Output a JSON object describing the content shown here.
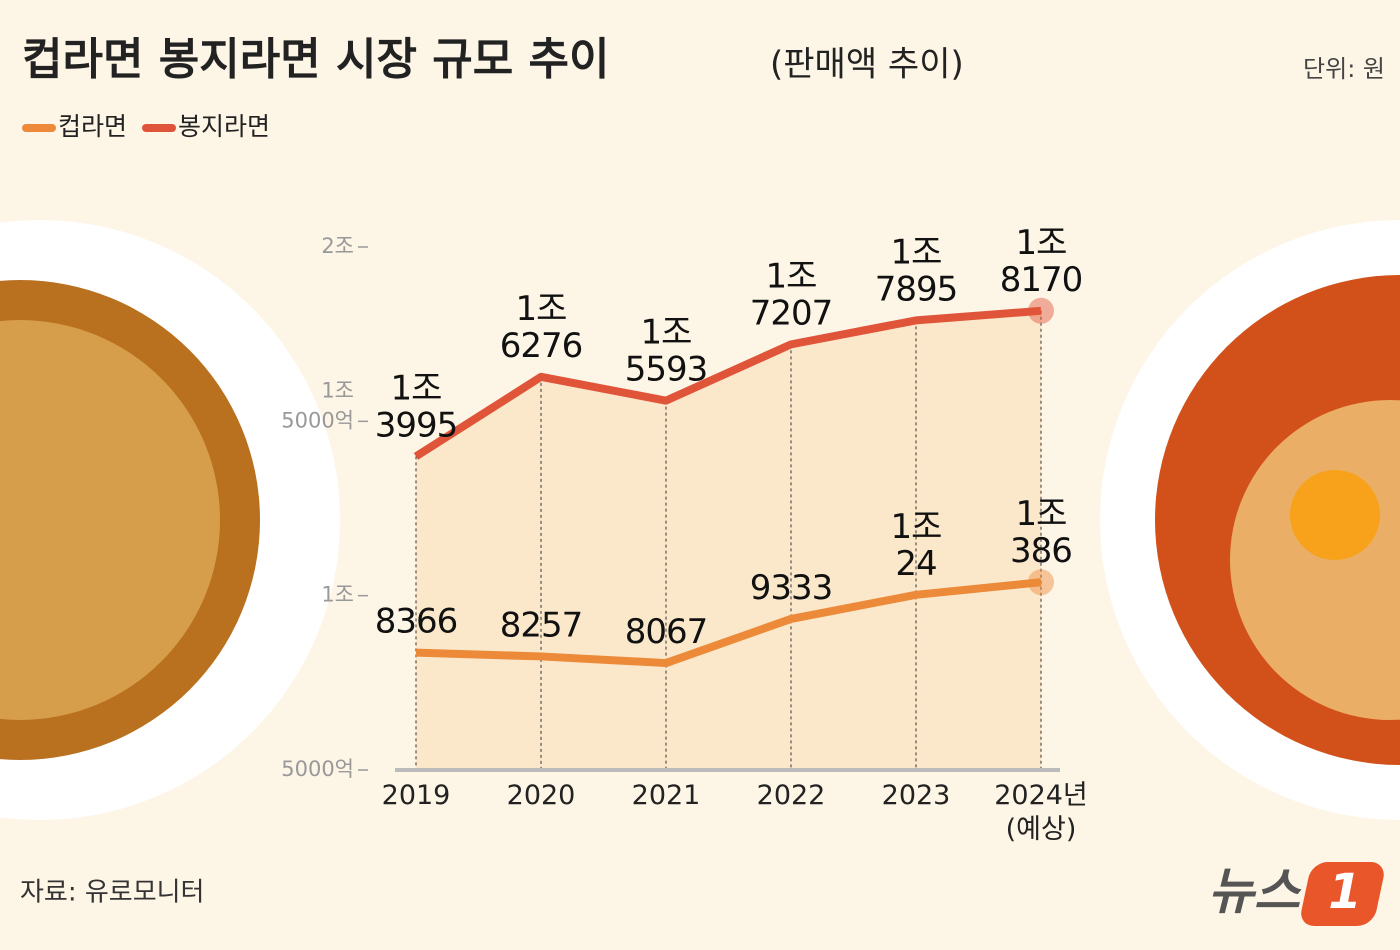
{
  "chart_data": {
    "type": "line",
    "title": "컵라면 봉지라면 시장 규모 추이",
    "subtitle": "(판매액 추이)",
    "unit_note": "단위: 원",
    "source": "자료: 유로모니터",
    "logo": "뉴스",
    "logo_mark": "1",
    "categories": [
      "2019",
      "2020",
      "2021",
      "2022",
      "2023",
      "2024년 (예상)"
    ],
    "series": [
      {
        "name": "컵라면",
        "color": "#ec8a3a",
        "values": [
          8366,
          8257,
          8067,
          9333,
          10024,
          10386
        ],
        "value_labels": [
          "8366",
          "8257",
          "8067",
          "9333",
          "1조 24",
          "1조 386"
        ]
      },
      {
        "name": "봉지라면",
        "color": "#e0553a",
        "values": [
          13995,
          16276,
          15593,
          17207,
          17895,
          18170
        ],
        "value_labels": [
          "1조 3995",
          "1조 6276",
          "1조 5593",
          "1조 7207",
          "1조 7895",
          "1조 8170"
        ]
      }
    ],
    "ylim": [
      5000,
      20000
    ],
    "yticks": [
      {
        "value": 5000,
        "label": "5000억"
      },
      {
        "value": 10000,
        "label": "1조"
      },
      {
        "value": 15000,
        "label": "1조 5000억"
      },
      {
        "value": 20000,
        "label": "2조"
      }
    ],
    "legend": "top-left"
  }
}
